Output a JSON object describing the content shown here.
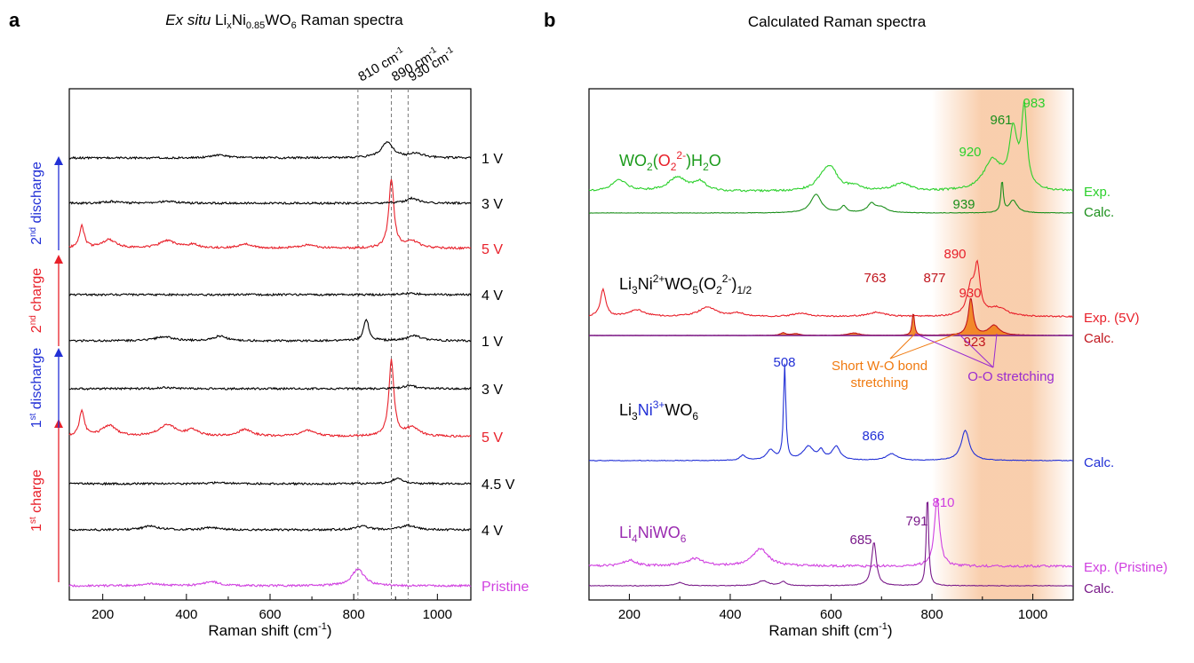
{
  "panels": {
    "a": {
      "letter": "a",
      "title_italic": "Ex situ",
      "title_rest": " Li",
      "title_sub1": "x",
      "title_mid": "Ni",
      "title_sub2": "0.85",
      "title_end": "WO",
      "title_sub3": "6",
      "title_tail": " Raman spectra",
      "xlabel": "Raman shift (cm",
      "xlabel_sup": "-1",
      "xlabel_end": ")",
      "ref_lines": [
        {
          "x": 810,
          "label": "810 cm",
          "sup": "-1"
        },
        {
          "x": 890,
          "label": "890 cm",
          "sup": "-1"
        },
        {
          "x": 930,
          "label": "930 cm",
          "sup": "-1"
        }
      ],
      "stage_labels": [
        {
          "pre": "1",
          "sup": "st",
          "post": " charge",
          "color": "#e8202a"
        },
        {
          "pre": "1",
          "sup": "st",
          "post": " discharge",
          "color": "#2230d6"
        },
        {
          "pre": "2",
          "sup": "nd",
          "post": " charge",
          "color": "#e8202a"
        },
        {
          "pre": "2",
          "sup": "nd",
          "post": " discharge",
          "color": "#2230d6"
        }
      ]
    },
    "b": {
      "letter": "b",
      "title": "Calculated Raman spectra",
      "xlabel": "Raman shift (cm",
      "xlabel_sup": "-1",
      "xlabel_end": ")",
      "annot_short": "Short W-O bond",
      "annot_short2": "stretching",
      "annot_oo": "O-O stretching",
      "compounds": {
        "wo2": {
          "p1": "WO",
          "s1": "2",
          "p2": "(",
          "red": "O",
          "rs": "2",
          "rsup": "2-",
          "p3": ")H",
          "s2": "2",
          "p4": "O"
        },
        "li3ni2": {
          "p1": "Li",
          "s1": "3",
          "p2": "Ni",
          "sup": "2+",
          "p3": "WO",
          "s2": "5",
          "p4": "(O",
          "s3": "2",
          "sup2": "2-",
          "p5": ")",
          "s4": "1/2"
        },
        "li3ni3": {
          "p1": "Li",
          "s1": "3",
          "blue": "Ni",
          "sup": "3+",
          "p3": "WO",
          "s2": "6"
        },
        "li4": {
          "text": "Li",
          "s1": "4",
          "p2": "NiWO",
          "s2": "6"
        }
      },
      "peak_labels": [
        {
          "text": "983",
          "color": "#2bd02b"
        },
        {
          "text": "961",
          "color": "#1b8f1b"
        },
        {
          "text": "920",
          "color": "#2bd02b"
        },
        {
          "text": "939",
          "color": "#1b8f1b"
        },
        {
          "text": "890",
          "color": "#e8202a"
        },
        {
          "text": "877",
          "color": "#c0141c"
        },
        {
          "text": "763",
          "color": "#c0141c"
        },
        {
          "text": "930",
          "color": "#e8202a"
        },
        {
          "text": "923",
          "color": "#c0141c"
        },
        {
          "text": "508",
          "color": "#2230d6"
        },
        {
          "text": "866",
          "color": "#2230d6"
        },
        {
          "text": "810",
          "color": "#d040e0"
        },
        {
          "text": "791",
          "color": "#7a1a8a"
        },
        {
          "text": "685",
          "color": "#7a1a8a"
        }
      ]
    }
  },
  "chart_data": [
    {
      "type": "line",
      "title": "Ex situ LixNi0.85WO6 Raman spectra",
      "xlabel": "Raman shift (cm-1)",
      "ylabel": "",
      "xlim": [
        120,
        1080
      ],
      "xticks": [
        200,
        400,
        600,
        800,
        1000
      ],
      "series": [
        {
          "name": "Pristine",
          "color": "#d040e0",
          "peaks": [
            [
              810,
              1.0
            ],
            [
              460,
              0.25
            ],
            [
              320,
              0.12
            ]
          ]
        },
        {
          "name": "4 V",
          "color": "#000000",
          "peaks": [
            [
              820,
              0.22
            ],
            [
              930,
              0.25
            ],
            [
              315,
              0.22
            ],
            [
              460,
              0.15
            ]
          ]
        },
        {
          "name": "4.5 V",
          "color": "#000000",
          "peaks": [
            [
              905,
              0.3
            ],
            [
              480,
              0.08
            ]
          ]
        },
        {
          "name": "5 V",
          "color": "#e8202a",
          "peaks": [
            [
              150,
              1.5
            ],
            [
              215,
              0.65
            ],
            [
              355,
              0.7
            ],
            [
              415,
              0.35
            ],
            [
              540,
              0.4
            ],
            [
              690,
              0.35
            ],
            [
              890,
              4.5
            ],
            [
              940,
              0.5
            ]
          ]
        },
        {
          "name": "3 V",
          "color": "#000000",
          "peaks": [
            [
              935,
              0.2
            ],
            [
              350,
              0.08
            ]
          ]
        },
        {
          "name": "1 V",
          "color": "#000000",
          "peaks": [
            [
              830,
              1.3
            ],
            [
              945,
              0.3
            ],
            [
              345,
              0.25
            ],
            [
              480,
              0.28
            ]
          ]
        },
        {
          "name": "4 V",
          "color": "#000000",
          "peaks": [
            [
              935,
              0.1
            ]
          ]
        },
        {
          "name": "5 V",
          "color": "#e8202a",
          "peaks": [
            [
              150,
              1.3
            ],
            [
              215,
              0.5
            ],
            [
              355,
              0.45
            ],
            [
              415,
              0.2
            ],
            [
              540,
              0.25
            ],
            [
              690,
              0.2
            ],
            [
              890,
              4.1
            ],
            [
              940,
              0.4
            ]
          ]
        },
        {
          "name": "3 V",
          "color": "#000000",
          "peaks": [
            [
              940,
              0.3
            ],
            [
              220,
              0.1
            ],
            [
              355,
              0.1
            ]
          ]
        },
        {
          "name": "1 V",
          "color": "#000000",
          "peaks": [
            [
              880,
              0.9
            ],
            [
              950,
              0.25
            ],
            [
              480,
              0.18
            ]
          ]
        }
      ]
    },
    {
      "type": "line",
      "title": "Calculated Raman spectra",
      "xlabel": "Raman shift (cm-1)",
      "ylabel": "",
      "xlim": [
        120,
        1080
      ],
      "xticks": [
        200,
        400,
        600,
        800,
        1000
      ],
      "highlight_range": [
        800,
        1080
      ],
      "series": [
        {
          "name": "Exp.",
          "color": "#2bd02b",
          "peaks": [
            [
              983,
              3.2
            ],
            [
              961,
              2.3
            ],
            [
              920,
              1.2
            ],
            [
              600,
              0.75
            ],
            [
              585,
              0.45
            ],
            [
              295,
              0.55
            ],
            [
              340,
              0.35
            ],
            [
              180,
              0.45
            ],
            [
              740,
              0.3
            ],
            [
              645,
              0.2
            ]
          ]
        },
        {
          "name": "Calc.",
          "color": "#1b8f1b",
          "peaks": [
            [
              939,
              1.3
            ],
            [
              961,
              0.5
            ],
            [
              570,
              0.75
            ],
            [
              625,
              0.25
            ],
            [
              680,
              0.35
            ],
            [
              700,
              0.2
            ]
          ]
        },
        {
          "name": "Exp. (5V)",
          "color": "#e8202a",
          "peaks": [
            [
              890,
              2.7
            ],
            [
              877,
              1.6
            ],
            [
              930,
              0.5
            ],
            [
              148,
              1.6
            ],
            [
              215,
              0.4
            ],
            [
              355,
              0.55
            ],
            [
              415,
              0.2
            ],
            [
              540,
              0.2
            ],
            [
              690,
              0.25
            ]
          ]
        },
        {
          "name": "Calc.",
          "color": "#c0141c",
          "peaks": [
            [
              763,
              1.4
            ],
            [
              877,
              2.2
            ],
            [
              923,
              0.6
            ],
            [
              505,
              0.15
            ],
            [
              530,
              0.1
            ],
            [
              645,
              0.15
            ]
          ]
        },
        {
          "name": "Calc.",
          "color": "#2230d6",
          "peaks": [
            [
              508,
              2.8
            ],
            [
              866,
              0.9
            ],
            [
              555,
              0.4
            ],
            [
              580,
              0.25
            ],
            [
              610,
              0.4
            ],
            [
              720,
              0.2
            ],
            [
              425,
              0.15
            ],
            [
              480,
              0.3
            ]
          ]
        },
        {
          "name": "Exp. (Pristine)",
          "color": "#d040e0",
          "peaks": [
            [
              810,
              2.3
            ],
            [
              460,
              0.6
            ],
            [
              330,
              0.25
            ],
            [
              200,
              0.2
            ]
          ]
        },
        {
          "name": "Calc.",
          "color": "#7a1a8a",
          "peaks": [
            [
              791,
              2.8
            ],
            [
              685,
              1.3
            ],
            [
              465,
              0.15
            ],
            [
              505,
              0.12
            ],
            [
              300,
              0.1
            ]
          ]
        }
      ]
    }
  ]
}
